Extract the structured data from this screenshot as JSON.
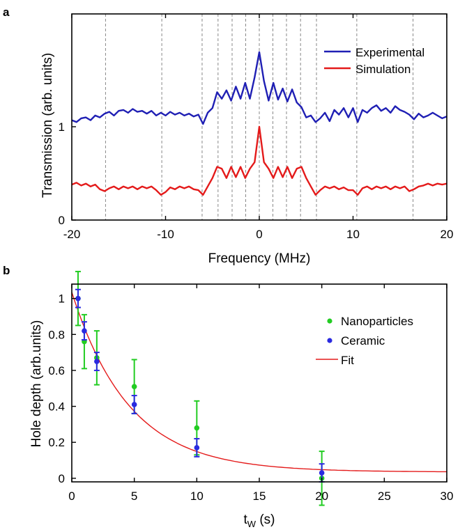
{
  "figure": {
    "panel_a_letter": "a",
    "panel_b_letter": "b"
  },
  "chart_data": [
    {
      "panel": "a",
      "type": "line",
      "xlabel": "Frequency (MHz)",
      "ylabel": "Transmission (arb. units)",
      "xlim": [
        -20,
        20
      ],
      "xticks": [
        -20,
        -10,
        0,
        10,
        20
      ],
      "yticks": [
        0,
        1
      ],
      "grid": false,
      "legend_position": "top-right",
      "reference_lines_x": [
        -16.4,
        -10.4,
        -6.1,
        -4.4,
        -2.9,
        -1.45,
        0,
        1.45,
        2.9,
        4.4,
        6.1,
        10.4,
        16.4
      ],
      "series": [
        {
          "name": "Experimental",
          "color": "#1f1fb4",
          "x": [
            -20,
            -19.5,
            -19,
            -18.5,
            -18,
            -17.5,
            -17,
            -16.5,
            -16,
            -15.5,
            -15,
            -14.5,
            -14,
            -13.5,
            -13,
            -12.5,
            -12,
            -11.5,
            -11,
            -10.5,
            -10,
            -9.5,
            -9,
            -8.5,
            -8,
            -7.5,
            -7,
            -6.5,
            -6,
            -5.5,
            -5,
            -4.5,
            -4,
            -3.5,
            -3,
            -2.5,
            -2,
            -1.5,
            -1,
            -0.5,
            0,
            0.5,
            1,
            1.5,
            2,
            2.5,
            3,
            3.5,
            4,
            4.5,
            5,
            5.5,
            6,
            6.5,
            7,
            7.5,
            8,
            8.5,
            9,
            9.5,
            10,
            10.5,
            11,
            11.5,
            12,
            12.5,
            13,
            13.5,
            14,
            14.5,
            15,
            15.5,
            16,
            16.5,
            17,
            17.5,
            18,
            18.5,
            19,
            19.5,
            20
          ],
          "y": [
            1.07,
            1.05,
            1.09,
            1.1,
            1.07,
            1.12,
            1.1,
            1.14,
            1.16,
            1.12,
            1.17,
            1.18,
            1.15,
            1.19,
            1.16,
            1.17,
            1.14,
            1.17,
            1.12,
            1.15,
            1.12,
            1.16,
            1.13,
            1.15,
            1.12,
            1.14,
            1.11,
            1.13,
            1.03,
            1.15,
            1.2,
            1.37,
            1.3,
            1.39,
            1.28,
            1.43,
            1.3,
            1.47,
            1.3,
            1.53,
            1.8,
            1.49,
            1.28,
            1.47,
            1.29,
            1.41,
            1.27,
            1.4,
            1.26,
            1.21,
            1.1,
            1.12,
            1.05,
            1.09,
            1.15,
            1.06,
            1.18,
            1.13,
            1.2,
            1.1,
            1.2,
            1.05,
            1.18,
            1.15,
            1.2,
            1.23,
            1.17,
            1.2,
            1.15,
            1.22,
            1.18,
            1.16,
            1.13,
            1.08,
            1.14,
            1.1,
            1.12,
            1.15,
            1.12,
            1.09,
            1.11
          ]
        },
        {
          "name": "Simulation",
          "color": "#e41a1a",
          "x": [
            -20,
            -19.5,
            -19,
            -18.5,
            -18,
            -17.5,
            -17,
            -16.5,
            -16,
            -15.5,
            -15,
            -14.5,
            -14,
            -13.5,
            -13,
            -12.5,
            -12,
            -11.5,
            -11,
            -10.5,
            -10,
            -9.5,
            -9,
            -8.5,
            -8,
            -7.5,
            -7,
            -6.5,
            -6,
            -5.5,
            -5,
            -4.5,
            -4,
            -3.5,
            -3,
            -2.5,
            -2,
            -1.5,
            -1,
            -0.5,
            0,
            0.5,
            1,
            1.5,
            2,
            2.5,
            3,
            3.5,
            4,
            4.5,
            5,
            5.5,
            6,
            6.5,
            7,
            7.5,
            8,
            8.5,
            9,
            9.5,
            10,
            10.5,
            11,
            11.5,
            12,
            12.5,
            13,
            13.5,
            14,
            14.5,
            15,
            15.5,
            16,
            16.5,
            17,
            17.5,
            18,
            18.5,
            19,
            19.5,
            20
          ],
          "y": [
            0.38,
            0.4,
            0.37,
            0.39,
            0.36,
            0.38,
            0.33,
            0.31,
            0.34,
            0.36,
            0.33,
            0.36,
            0.34,
            0.36,
            0.33,
            0.36,
            0.34,
            0.36,
            0.32,
            0.27,
            0.3,
            0.35,
            0.33,
            0.36,
            0.34,
            0.36,
            0.33,
            0.32,
            0.27,
            0.36,
            0.45,
            0.57,
            0.55,
            0.45,
            0.57,
            0.46,
            0.57,
            0.45,
            0.55,
            0.62,
            1.0,
            0.62,
            0.55,
            0.45,
            0.57,
            0.46,
            0.57,
            0.45,
            0.55,
            0.57,
            0.45,
            0.36,
            0.27,
            0.32,
            0.36,
            0.34,
            0.36,
            0.33,
            0.35,
            0.32,
            0.32,
            0.27,
            0.34,
            0.36,
            0.33,
            0.36,
            0.34,
            0.36,
            0.33,
            0.36,
            0.34,
            0.36,
            0.31,
            0.33,
            0.36,
            0.37,
            0.39,
            0.37,
            0.39,
            0.38,
            0.39
          ]
        }
      ]
    },
    {
      "panel": "b",
      "type": "scatter",
      "xlabel": "t",
      "xlabel_subscript": "W",
      "xlabel_unit": " (s)",
      "ylabel": "Hole depth (arb.units)",
      "xlim": [
        0,
        30
      ],
      "ylim": [
        -0.02,
        1.08
      ],
      "xticks": [
        0,
        5,
        10,
        15,
        20,
        25,
        30
      ],
      "yticks": [
        0,
        0.2,
        0.4,
        0.6,
        0.8,
        1
      ],
      "grid": false,
      "legend_position": "top-right",
      "series": [
        {
          "name": "Nanoparticles",
          "color": "#22cc22",
          "x": [
            0.5,
            1,
            2,
            5,
            10,
            20
          ],
          "y": [
            1.0,
            0.76,
            0.67,
            0.51,
            0.28,
            0.0
          ],
          "err": [
            0.15,
            0.15,
            0.15,
            0.15,
            0.15,
            0.15
          ]
        },
        {
          "name": "Ceramic",
          "color": "#2a2ae0",
          "x": [
            0.5,
            1,
            2,
            5,
            10,
            20
          ],
          "y": [
            1.0,
            0.82,
            0.65,
            0.41,
            0.17,
            0.03
          ],
          "err": [
            0.05,
            0.05,
            0.05,
            0.05,
            0.05,
            0.05
          ]
        },
        {
          "name": "Fit",
          "type": "line",
          "color": "#e41a1a",
          "model": "a*exp(-x/tau)+c",
          "params": {
            "a": 1.0,
            "tau": 4.6,
            "c": 0.035
          }
        }
      ]
    }
  ]
}
